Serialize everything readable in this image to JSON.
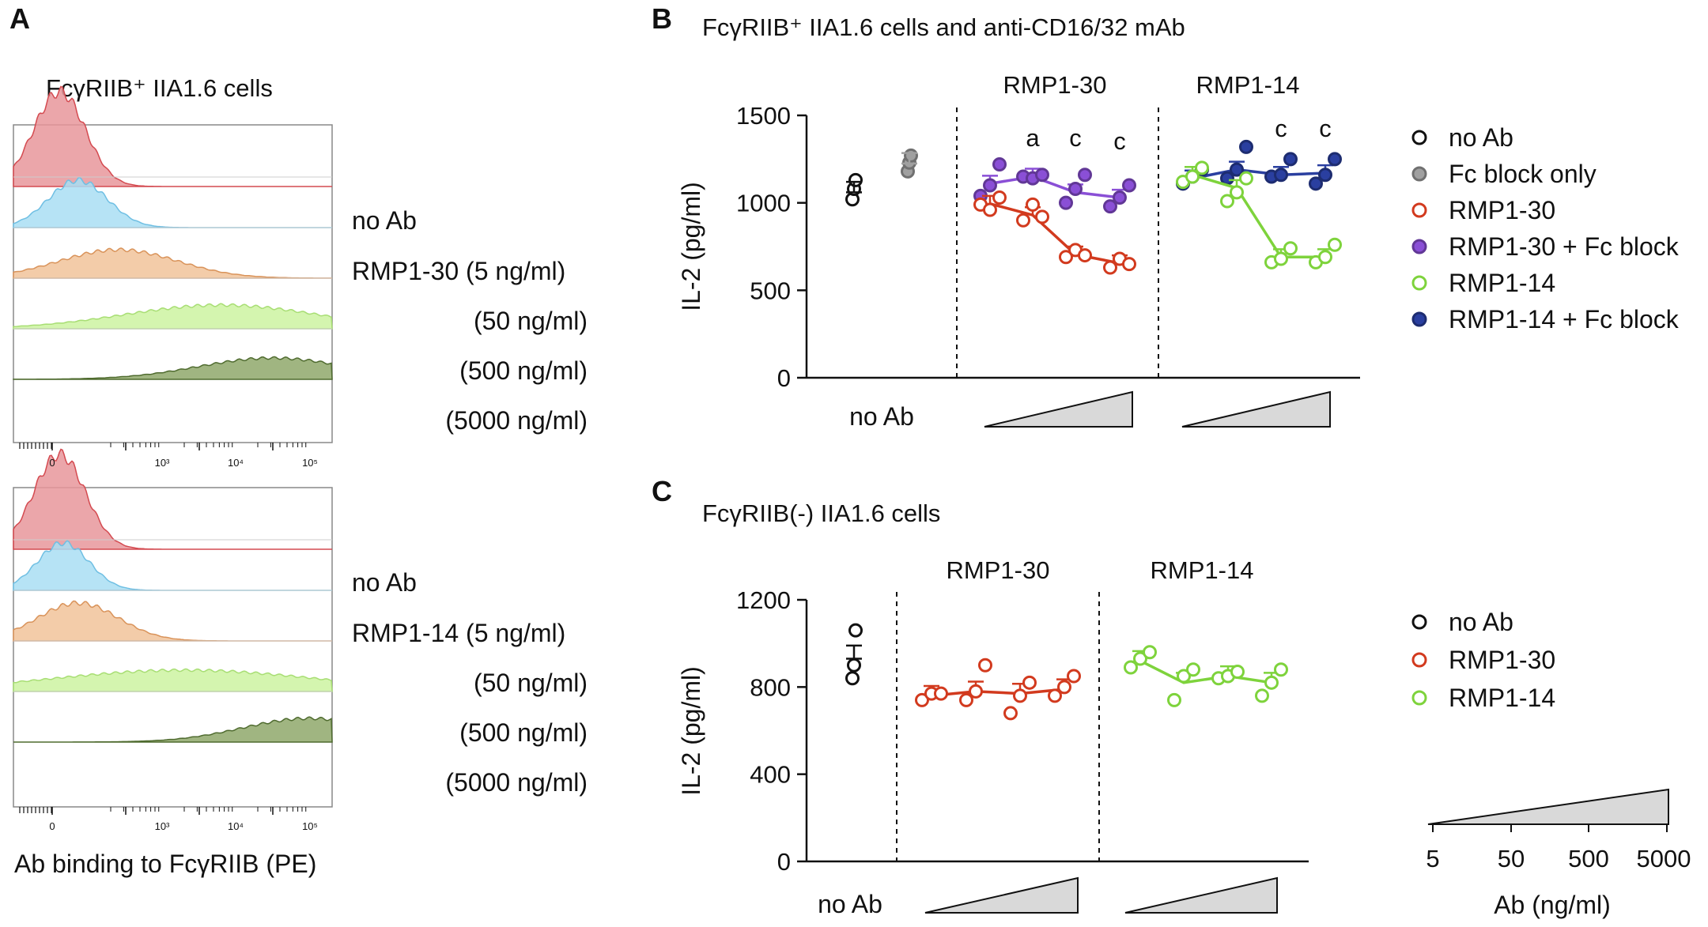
{
  "panel_labels": {
    "a": "A",
    "b": "B",
    "c": "C"
  },
  "panel_a": {
    "title": "FcγRIIB⁺ IIA1.6 cells",
    "xlabel": "Ab binding to FcγRIIB (PE)",
    "axis_ticks": [
      "0",
      "10³",
      "10⁴",
      "10⁵"
    ],
    "upper_legend": [
      "no Ab",
      "RMP1-30 (5 ng/ml)",
      "(50 ng/ml)",
      "(500 ng/ml)",
      "(5000 ng/ml)"
    ],
    "lower_legend": [
      "no Ab",
      "RMP1-14 (5 ng/ml)",
      "(50 ng/ml)",
      "(500 ng/ml)",
      "(5000 ng/ml)"
    ]
  },
  "legend_b": [
    "no Ab",
    "Fc block only",
    "RMP1-30",
    "RMP1-30 + Fc block",
    "RMP1-14",
    "RMP1-14 + Fc block"
  ],
  "legend_c": [
    "no Ab",
    "RMP1-30",
    "RMP1-14"
  ],
  "ab_scale": {
    "ticks": [
      "5",
      "50",
      "500",
      "5000"
    ],
    "label": "Ab (ng/ml)"
  },
  "colors": {
    "no_ab": "#111111",
    "fc_block": "#a0a0a0",
    "rmp1_30": "#d23a1e",
    "rmp1_30_fc": "#8a4fd6",
    "rmp1_14": "#7ed33c",
    "rmp1_14_fc": "#2a3fa0",
    "hist_noab": "#e8979b",
    "hist_5": "#a9def3",
    "hist_50": "#f1c39a",
    "hist_500": "#cdf3a1",
    "hist_5000": "#8fa86b"
  },
  "chart_data": [
    {
      "type": "histogram",
      "panel": "A-upper",
      "xscale": "log",
      "series": [
        {
          "name": "no Ab",
          "peak_log": 0.1,
          "spread": 0.35,
          "height": 1.0
        },
        {
          "name": "RMP1-30 (5 ng/ml)",
          "peak_log": 0.35,
          "spread": 0.4,
          "height": 1.0
        },
        {
          "name": "(50 ng/ml)",
          "peak_log": 0.9,
          "spread": 0.8,
          "height": 0.6
        },
        {
          "name": "(500 ng/ml)",
          "peak_log": 2.3,
          "spread": 1.3,
          "height": 0.5
        },
        {
          "name": "(5000 ng/ml)",
          "peak_log": 3.0,
          "spread": 1.0,
          "height": 0.45
        }
      ]
    },
    {
      "type": "histogram",
      "panel": "A-lower",
      "xscale": "log",
      "series": [
        {
          "name": "no Ab",
          "peak_log": 0.1,
          "spread": 0.35,
          "height": 1.0
        },
        {
          "name": "RMP1-14 (5 ng/ml)",
          "peak_log": 0.15,
          "spread": 0.35,
          "height": 1.0
        },
        {
          "name": "(50 ng/ml)",
          "peak_log": 0.35,
          "spread": 0.55,
          "height": 0.8
        },
        {
          "name": "(500 ng/ml)",
          "peak_log": 1.8,
          "spread": 1.8,
          "height": 0.45
        },
        {
          "name": "(5000 ng/ml)",
          "peak_log": 3.5,
          "spread": 0.9,
          "height": 0.5
        }
      ]
    },
    {
      "type": "scatter",
      "panel": "B",
      "title": "FcγRIIB⁺ IIA1.6 cells and anti-CD16/32 mAb",
      "ylabel": "IL-2 (pg/ml)",
      "ylim": [
        0,
        1500
      ],
      "yticks": [
        0,
        500,
        1000,
        1500
      ],
      "group_labels": [
        "RMP1-30",
        "RMP1-14"
      ],
      "xlabel_left": "no Ab",
      "concentrations": [
        5,
        50,
        500,
        5000
      ],
      "significance": [
        "a",
        "c",
        "c",
        "c",
        "c"
      ],
      "series": [
        {
          "name": "no Ab",
          "points": [
            1020,
            1080,
            1130
          ],
          "mean": 1060
        },
        {
          "name": "Fc block only",
          "points": [
            1180,
            1230,
            1270
          ],
          "mean": 1225
        },
        {
          "name": "RMP1-30",
          "points": [
            [
              990,
              960,
              1030
            ],
            [
              900,
              990,
              920
            ],
            [
              690,
              730,
              700
            ],
            [
              630,
              680,
              650
            ]
          ],
          "means": [
            995,
            930,
            705,
            655
          ]
        },
        {
          "name": "RMP1-30 + Fc block",
          "points": [
            [
              1040,
              1100,
              1220
            ],
            [
              1150,
              1140,
              1160
            ],
            [
              1000,
              1080,
              1160
            ],
            [
              980,
              1030,
              1100
            ]
          ],
          "means": [
            1110,
            1150,
            1060,
            1030
          ]
        },
        {
          "name": "RMP1-14",
          "points": [
            [
              1120,
              1150,
              1200
            ],
            [
              1010,
              1060,
              1140
            ],
            [
              660,
              680,
              740
            ],
            [
              660,
              690,
              760
            ]
          ],
          "means": [
            1160,
            1085,
            690,
            690
          ]
        },
        {
          "name": "RMP1-14 + Fc block",
          "points": [
            [
              1110,
              1150,
              1190
            ],
            [
              1140,
              1190,
              1320
            ],
            [
              1150,
              1160,
              1250
            ],
            [
              1110,
              1160,
              1250
            ]
          ],
          "means": [
            1140,
            1190,
            1160,
            1170
          ]
        }
      ]
    },
    {
      "type": "scatter",
      "panel": "C",
      "title": "FcγRIIB(-) IIA1.6 cells",
      "ylabel": "IL-2 (pg/ml)",
      "ylim": [
        0,
        1200
      ],
      "yticks": [
        0,
        400,
        800,
        1200
      ],
      "group_labels": [
        "RMP1-30",
        "RMP1-14"
      ],
      "xlabel_left": "no Ab",
      "concentrations": [
        5,
        50,
        500,
        5000
      ],
      "series": [
        {
          "name": "no Ab",
          "points": [
            840,
            900,
            1060
          ],
          "mean": 930
        },
        {
          "name": "RMP1-30",
          "points": [
            [
              740,
              770,
              770
            ],
            [
              740,
              780,
              900
            ],
            [
              680,
              760,
              820
            ],
            [
              760,
              800,
              850
            ]
          ],
          "means": [
            760,
            780,
            770,
            790
          ]
        },
        {
          "name": "RMP1-14",
          "points": [
            [
              890,
              930,
              960
            ],
            [
              740,
              850,
              880
            ],
            [
              840,
              850,
              870
            ],
            [
              760,
              820,
              880
            ]
          ],
          "means": [
            920,
            820,
            850,
            820
          ]
        }
      ]
    }
  ]
}
